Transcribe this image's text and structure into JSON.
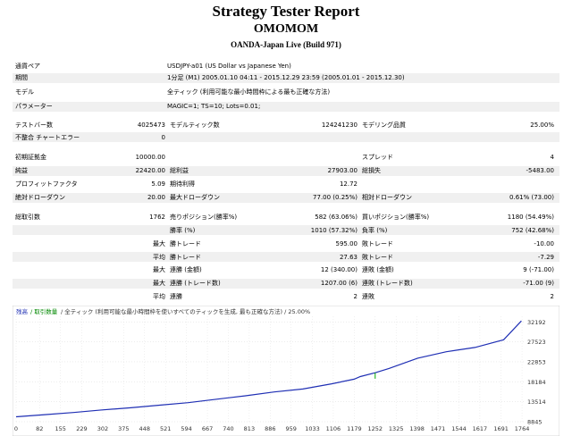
{
  "header": {
    "title": "Strategy Tester Report",
    "ea_name": "OMOMOM",
    "server": "OANDA-Japan Live (Build 971)"
  },
  "info": {
    "symbol_label": "通貨ペア",
    "symbol_value": "USDJPY-a01 (US Dollar vs Japanese Yen)",
    "period_label": "期間",
    "period_value": "1分足 (M1) 2005.01.10 04:11 - 2015.12.29 23:59 (2005.01.01 - 2015.12.30)",
    "model_label": "モデル",
    "model_value": "全ティック (利用可能な最小時間枠による最も正確な方法)",
    "params_label": "パラメーター",
    "params_value": "MAGIC=1; TS=10; Lots=0.01;"
  },
  "quality": {
    "bars_label": "テストバー数",
    "bars_value": "4025473",
    "ticks_label": "モデルティック数",
    "ticks_value": "124241230",
    "modeling_label": "モデリング品質",
    "modeling_value": "25.00%",
    "mismatch_label": "不整合 チャートエラー",
    "mismatch_value": "0"
  },
  "stats": {
    "deposit_label": "初期証拠金",
    "deposit_value": "10000.00",
    "spread_label": "スプレッド",
    "spread_value": "4",
    "net_label": "純益",
    "net_value": "22420.00",
    "gross_profit_label": "総利益",
    "gross_profit_value": "27903.00",
    "gross_loss_label": "総損失",
    "gross_loss_value": "-5483.00",
    "pf_label": "プロフィットファクタ",
    "pf_value": "5.09",
    "payoff_label": "期待利得",
    "payoff_value": "12.72",
    "abs_dd_label": "絶対ドローダウン",
    "abs_dd_value": "20.00",
    "max_dd_label": "最大ドローダウン",
    "max_dd_value": "77.00 (0.25%)",
    "rel_dd_label": "相対ドローダウン",
    "rel_dd_value": "0.61% (73.00)"
  },
  "trades": {
    "total_label": "総取引数",
    "total_value": "1762",
    "short_label": "売りポジション(勝率%)",
    "short_value": "582 (63.06%)",
    "long_label": "買いポジション(勝率%)",
    "long_value": "1180 (54.49%)",
    "win_label": "勝率 (%)",
    "win_value": "1010 (57.32%)",
    "loss_label": "負率 (%)",
    "loss_value": "752 (42.68%)",
    "rows": [
      {
        "p1": "最大",
        "l1": "勝トレード",
        "v1": "595.00",
        "l2": "敗トレード",
        "v2": "-10.00"
      },
      {
        "p1": "平均",
        "l1": "勝トレード",
        "v1": "27.63",
        "l2": "敗トレード",
        "v2": "-7.29"
      },
      {
        "p1": "最大",
        "l1": "連勝 (金額)",
        "v1": "12 (340.00)",
        "l2": "連敗 (金額)",
        "v2": "9 (-71.00)"
      },
      {
        "p1": "最大",
        "l1": "連勝 (トレード数)",
        "v1": "1207.00 (6)",
        "l2": "連敗 (トレード数)",
        "v2": "-71.00 (9)"
      },
      {
        "p1": "平均",
        "l1": "連勝",
        "v1": "2",
        "l2": "連敗",
        "v2": "2"
      }
    ]
  },
  "chart_header": {
    "balance": "残高",
    "volume": "/ 取引数量",
    "model_text": "/ 全ティック (利用可能な最小時間枠を使いすべてのティックを生成, 最も正確な方法) / 25.00%"
  },
  "chart_data": {
    "type": "line",
    "series": [
      {
        "name": "残高",
        "color": "#1f2fb4",
        "points": [
          [
            0,
            10000
          ],
          [
            100,
            10500
          ],
          [
            200,
            11000
          ],
          [
            300,
            11600
          ],
          [
            400,
            12100
          ],
          [
            500,
            12700
          ],
          [
            600,
            13300
          ],
          [
            700,
            14100
          ],
          [
            800,
            14900
          ],
          [
            900,
            15800
          ],
          [
            1000,
            16500
          ],
          [
            1100,
            17700
          ],
          [
            1179,
            18800
          ],
          [
            1200,
            19400
          ],
          [
            1252,
            20300
          ],
          [
            1300,
            21300
          ],
          [
            1400,
            23700
          ],
          [
            1500,
            25200
          ],
          [
            1600,
            26200
          ],
          [
            1700,
            28000
          ],
          [
            1762,
            32420
          ]
        ]
      }
    ],
    "spike": {
      "x": 1252,
      "y_from": 20300,
      "y_to": 18900,
      "color": "#00aa00"
    },
    "x_ticks": [
      "0",
      "82",
      "155",
      "229",
      "302",
      "375",
      "448",
      "521",
      "594",
      "667",
      "740",
      "813",
      "886",
      "959",
      "1033",
      "1106",
      "1179",
      "1252",
      "1325",
      "1398",
      "1471",
      "1544",
      "1617",
      "1691",
      "1764"
    ],
    "y_ticks": [
      "32192",
      "27523",
      "22853",
      "18184",
      "13514",
      "8845"
    ],
    "xlim": [
      0,
      1770
    ],
    "ylim": [
      8845,
      33500
    ],
    "grid": true
  }
}
